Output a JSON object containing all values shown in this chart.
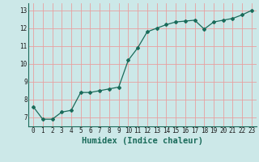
{
  "x": [
    0,
    1,
    2,
    3,
    4,
    5,
    6,
    7,
    8,
    9,
    10,
    11,
    12,
    13,
    14,
    15,
    16,
    17,
    18,
    19,
    20,
    21,
    22,
    23
  ],
  "y": [
    7.6,
    6.9,
    6.9,
    7.3,
    7.4,
    8.4,
    8.4,
    8.5,
    8.6,
    8.7,
    10.2,
    10.9,
    11.8,
    12.0,
    12.2,
    12.35,
    12.4,
    12.45,
    11.95,
    12.35,
    12.45,
    12.55,
    12.75,
    13.0
  ],
  "line_color": "#1a6b5a",
  "marker": "D",
  "marker_size": 2,
  "bg_color": "#cce8e8",
  "xlabel": "Humidex (Indice chaleur)",
  "xlim": [
    -0.5,
    23.5
  ],
  "ylim": [
    6.5,
    13.4
  ],
  "yticks": [
    7,
    8,
    9,
    10,
    11,
    12,
    13
  ],
  "xticks": [
    0,
    1,
    2,
    3,
    4,
    5,
    6,
    7,
    8,
    9,
    10,
    11,
    12,
    13,
    14,
    15,
    16,
    17,
    18,
    19,
    20,
    21,
    22,
    23
  ],
  "tick_label_fontsize": 5.5,
  "xlabel_fontsize": 7.5,
  "red_grid_color": "#e8a0a0",
  "teal_grid_color": "#a8d0d0"
}
